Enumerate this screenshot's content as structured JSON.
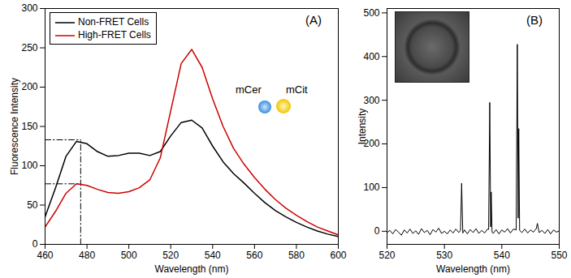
{
  "chart_data": [
    {
      "type": "line",
      "panel_label": "(A)",
      "x_label": "Wavelength (nm)",
      "y_label": "Fluorescence Intensity",
      "annotations": [
        "mCer",
        "mCit"
      ],
      "x": [
        460,
        465,
        470,
        475,
        480,
        485,
        490,
        495,
        500,
        505,
        510,
        515,
        520,
        525,
        530,
        535,
        540,
        545,
        550,
        555,
        560,
        565,
        570,
        575,
        580,
        585,
        590,
        595,
        600
      ],
      "series": [
        {
          "name": "Non-FRET Cells",
          "color": "#000000",
          "line_style": "solid",
          "values": [
            35,
            72,
            112,
            131,
            128,
            118,
            112,
            113,
            116,
            116,
            113,
            118,
            138,
            155,
            158,
            148,
            125,
            105,
            90,
            78,
            65,
            53,
            43,
            35,
            28,
            22,
            17,
            13,
            10
          ]
        },
        {
          "name": "High-FRET Cells",
          "color": "#cc0000",
          "line_style": "solid",
          "values": [
            22,
            42,
            65,
            77,
            75,
            70,
            66,
            65,
            67,
            72,
            82,
            110,
            170,
            230,
            248,
            225,
            185,
            150,
            122,
            102,
            85,
            70,
            57,
            46,
            37,
            29,
            22,
            17,
            12
          ]
        }
      ],
      "guide_lines": {
        "x": 477,
        "y": [
          133,
          77
        ]
      },
      "xlim": [
        460,
        600
      ],
      "xticks": [
        460,
        480,
        500,
        520,
        540,
        560,
        580,
        600
      ],
      "ylim": [
        0,
        300
      ],
      "yticks": [
        0,
        50,
        100,
        150,
        200,
        250,
        300
      ],
      "grid": false,
      "legend": "top-left"
    },
    {
      "type": "line",
      "panel_label": "(B)",
      "x_label": "Wavelength (nm)",
      "y_label": "Intensity",
      "color": "#000000",
      "x": [
        520,
        520.5,
        521,
        521.5,
        522,
        522.5,
        523,
        523.5,
        524,
        524.5,
        525,
        525.5,
        526,
        526.5,
        527,
        527.5,
        528,
        528.5,
        529,
        529.5,
        530,
        530.5,
        531,
        531.5,
        532,
        532.5,
        532.8,
        533.0,
        533.2,
        533.5,
        534,
        534.5,
        535,
        535.5,
        536,
        536.5,
        537,
        537.5,
        537.7,
        537.9,
        538.05,
        538.15,
        538.3,
        538.5,
        539,
        539.5,
        540,
        540.5,
        541,
        541.5,
        542,
        542.5,
        542.7,
        542.85,
        542.95,
        543.1,
        543.5,
        544,
        544.5,
        545,
        545.5,
        546,
        546.2,
        546.4,
        546.5,
        547,
        547.5,
        548,
        548.5,
        549,
        549.5,
        550
      ],
      "values": [
        -3,
        2,
        -6,
        4,
        -2,
        -9,
        3,
        -4,
        5,
        -5,
        1,
        -7,
        6,
        -3,
        2,
        -8,
        4,
        -2,
        7,
        -5,
        0,
        -6,
        3,
        -4,
        5,
        -3,
        2,
        110,
        -4,
        3,
        -6,
        4,
        -3,
        6,
        -5,
        2,
        -4,
        5,
        4,
        295,
        10,
        90,
        -2,
        -5,
        4,
        -6,
        3,
        -2,
        6,
        -4,
        5,
        3,
        428,
        30,
        235,
        2,
        -3,
        5,
        -4,
        3,
        -2,
        6,
        18,
        4,
        -3,
        2,
        -5,
        4,
        -6,
        3,
        -2,
        1
      ],
      "xlim": [
        520,
        550
      ],
      "xticks": [
        520,
        530,
        540,
        550
      ],
      "ylim": [
        -30,
        510
      ],
      "yticks": [
        0,
        100,
        200,
        300,
        400,
        500
      ],
      "grid": false
    }
  ]
}
